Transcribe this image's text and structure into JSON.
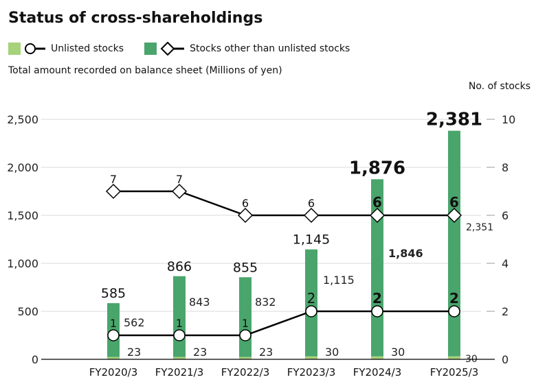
{
  "chart_data": {
    "type": "bar",
    "title": "Status of cross-shareholdings",
    "ylabel": "Total amount recorded on balance sheet (Millions of yen)",
    "y2label": "No. of stocks",
    "categories": [
      "FY2020/3",
      "FY2021/3",
      "FY2022/3",
      "FY2023/3",
      "FY2024/3",
      "FY2025/3"
    ],
    "ylim": [
      0,
      2500
    ],
    "y2lim": [
      0,
      10
    ],
    "yticks": [
      "0",
      "500",
      "1,000",
      "1,500",
      "2,000",
      "2,500"
    ],
    "y2ticks": [
      "0",
      "2",
      "4",
      "6",
      "8",
      "10"
    ],
    "grid": true,
    "legend_position": "top-left",
    "series": [
      {
        "name": "Unlisted stocks",
        "kind": "stacked-bar",
        "color": "#a6d27a",
        "values": [
          23,
          23,
          23,
          30,
          30,
          30
        ],
        "labels": [
          "23",
          "23",
          "23",
          "30",
          "30",
          "30"
        ]
      },
      {
        "name": "Stocks other than unlisted stocks",
        "kind": "stacked-bar",
        "color": "#4aa56c",
        "values": [
          562,
          843,
          832,
          1115,
          1846,
          2351
        ],
        "labels": [
          "562",
          "843",
          "832",
          "1,115",
          "1,846",
          "2,351"
        ]
      },
      {
        "name": "Unlisted stocks",
        "kind": "line",
        "axis": "right",
        "marker": "circle",
        "values": [
          1,
          1,
          1,
          2,
          2,
          2
        ]
      },
      {
        "name": "Stocks other than unlisted stocks",
        "kind": "line",
        "axis": "right",
        "marker": "diamond",
        "values": [
          7,
          7,
          6,
          6,
          6,
          6
        ]
      }
    ],
    "totals": [
      "585",
      "866",
      "855",
      "1,145",
      "1,876",
      "2,381"
    ]
  }
}
